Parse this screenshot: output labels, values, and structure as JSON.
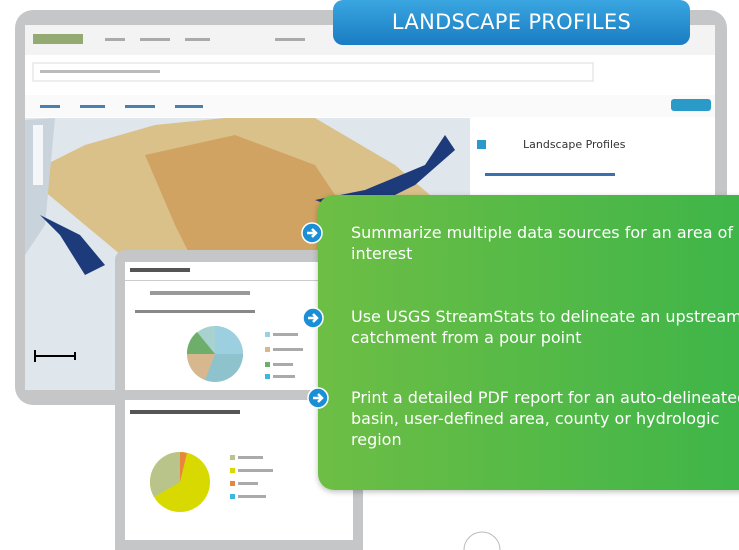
{
  "banner": {
    "title": "LANDSCAPE PROFILES"
  },
  "app": {
    "sidebar_title": "Landscape Profiles"
  },
  "features": [
    {
      "text": "Summarize multiple data sources for an area of interest"
    },
    {
      "text": "Use USGS StreamStats to delineate an upstream catchment from a pour point"
    },
    {
      "text": "Print a detailed PDF report for an auto-delineated basin, user-defined area, county or hydrologic region"
    }
  ]
}
